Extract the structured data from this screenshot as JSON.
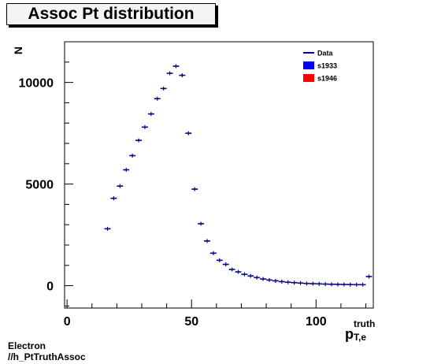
{
  "chart_data": {
    "type": "scatter",
    "title": "Assoc Pt distribution",
    "ylabel": "N",
    "xlabel_main": "p",
    "xlabel_sup": "truth",
    "xlabel_sub": "T,e",
    "xlim": [
      -1,
      123
    ],
    "ylim": [
      -1100,
      12000
    ],
    "x_ticks": [
      0,
      50,
      100
    ],
    "y_ticks": [
      0,
      5000,
      10000
    ],
    "legend": {
      "placement": "top-right",
      "entries": [
        {
          "label": "Data",
          "style": "line",
          "color": "#000080"
        },
        {
          "label": "s1933",
          "style": "box",
          "color": "#0000ff"
        },
        {
          "label": "s1946",
          "style": "box",
          "color": "#ff0000"
        }
      ]
    },
    "series": [
      {
        "name": "Data",
        "color": "#000080",
        "bin_width": 2.5,
        "x": [
          16.25,
          18.75,
          21.25,
          23.75,
          26.25,
          28.75,
          31.25,
          33.75,
          36.25,
          38.75,
          41.25,
          43.75,
          46.25,
          48.75,
          51.25,
          53.75,
          56.25,
          58.75,
          61.25,
          63.75,
          66.25,
          68.75,
          71.25,
          73.75,
          76.25,
          78.75,
          81.25,
          83.75,
          86.25,
          88.75,
          91.25,
          93.75,
          96.25,
          98.75,
          101.25,
          103.75,
          106.25,
          108.75,
          111.25,
          113.75,
          116.25,
          118.75,
          121.25
        ],
        "y": [
          2800,
          4300,
          4900,
          5700,
          6400,
          7150,
          7800,
          8450,
          9200,
          9700,
          10450,
          10800,
          10350,
          7500,
          4750,
          3050,
          2200,
          1600,
          1250,
          1050,
          800,
          680,
          560,
          480,
          400,
          330,
          280,
          240,
          200,
          170,
          150,
          130,
          110,
          100,
          90,
          80,
          70,
          65,
          60,
          55,
          50,
          50,
          450
        ]
      }
    ]
  },
  "footer": {
    "line1": "Electron",
    "line2": "//h_PtTruthAssoc"
  }
}
